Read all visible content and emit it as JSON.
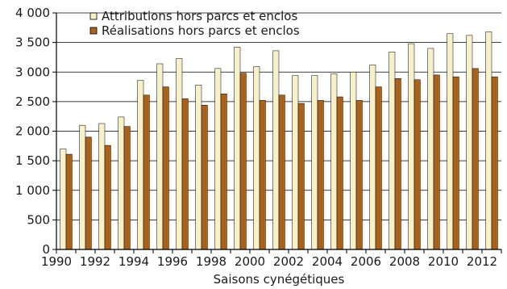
{
  "chart_data": {
    "type": "bar",
    "title": "",
    "xlabel": "Saisons cynégétiques",
    "ylabel": "",
    "ylim": [
      0,
      4000
    ],
    "y_ticks": [
      0,
      500,
      1000,
      1500,
      2000,
      2500,
      3000,
      3500,
      4000
    ],
    "y_tick_labels": [
      "0",
      "500",
      "1 000",
      "1 500",
      "2 000",
      "2 500",
      "3 000",
      "3 500",
      "4 000"
    ],
    "categories": [
      "1990",
      "1991",
      "1992",
      "1993",
      "1994",
      "1995",
      "1996",
      "1997",
      "1998",
      "1999",
      "2000",
      "2001",
      "2002",
      "2003",
      "2004",
      "2005",
      "2006",
      "2007",
      "2008",
      "2009",
      "2010",
      "2011",
      "2012"
    ],
    "x_tick_labels": [
      "1990",
      "1992",
      "1994",
      "1996",
      "1998",
      "2000",
      "2002",
      "2004",
      "2006",
      "2008",
      "2010",
      "2012"
    ],
    "grid": "horizontal",
    "legend_position": "top-left",
    "series": [
      {
        "name": "Attributions hors parcs et enclos",
        "color": "#f7f0c8",
        "values": [
          1700,
          2100,
          2130,
          2240,
          2860,
          3140,
          3230,
          2780,
          3060,
          3420,
          3090,
          3360,
          2940,
          2940,
          2970,
          3000,
          3120,
          3340,
          3480,
          3400,
          3650,
          3620,
          3680
        ]
      },
      {
        "name": "Réalisations hors parcs et enclos",
        "color": "#a9621f",
        "values": [
          1610,
          1900,
          1760,
          2080,
          2610,
          2750,
          2550,
          2440,
          2630,
          2980,
          2520,
          2610,
          2470,
          2520,
          2580,
          2520,
          2750,
          2890,
          2870,
          2950,
          2920,
          3060,
          2920
        ]
      }
    ]
  }
}
